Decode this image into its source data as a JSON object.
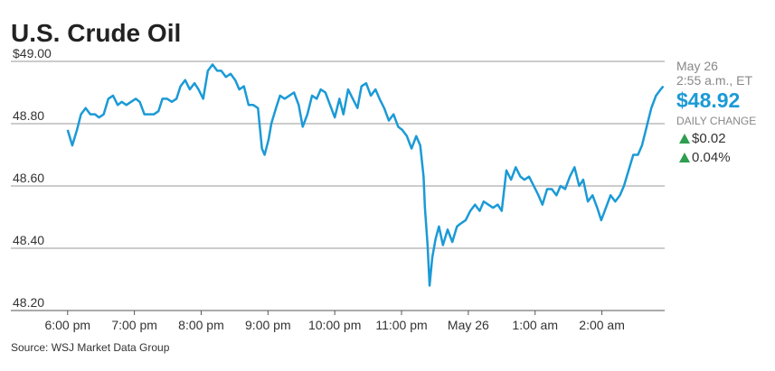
{
  "chart_data": {
    "type": "line",
    "title": "U.S. Crude Oil",
    "source": "Source: WSJ Market Data Group",
    "date": "May 26",
    "time": "2:55 a.m., ET",
    "price": "$48.92",
    "change_label": "DAILY CHANGE",
    "change": "$0.02",
    "change_pct": "0.04%",
    "color": "#1b9ad6",
    "up_color": "#2e9e4f",
    "grid": true,
    "xlim": [
      -0.85,
      8.94
    ],
    "ylim": [
      48.2,
      49.0
    ],
    "yticks": [
      {
        "value": 49.0,
        "label": "$49.00"
      },
      {
        "value": 48.8,
        "label": "48.80"
      },
      {
        "value": 48.6,
        "label": "48.60"
      },
      {
        "value": 48.4,
        "label": "48.40"
      },
      {
        "value": 48.2,
        "label": "48.20"
      }
    ],
    "xticks": [
      {
        "value": 0,
        "label": "6:00 pm"
      },
      {
        "value": 1,
        "label": "7:00 pm"
      },
      {
        "value": 2,
        "label": "8:00 pm"
      },
      {
        "value": 3,
        "label": "9:00 pm"
      },
      {
        "value": 4,
        "label": "10:00 pm"
      },
      {
        "value": 5,
        "label": "11:00 pm"
      },
      {
        "value": 6,
        "label": "May 26"
      },
      {
        "value": 7,
        "label": "1:00 am"
      },
      {
        "value": 8,
        "label": "2:00 am"
      }
    ],
    "x": [
      0,
      0.07,
      0.14,
      0.2,
      0.27,
      0.34,
      0.41,
      0.47,
      0.54,
      0.61,
      0.68,
      0.75,
      0.81,
      0.88,
      0.95,
      1.02,
      1.08,
      1.15,
      1.22,
      1.29,
      1.36,
      1.42,
      1.49,
      1.56,
      1.63,
      1.69,
      1.76,
      1.83,
      1.9,
      1.96,
      2.03,
      2.1,
      2.17,
      2.24,
      2.3,
      2.37,
      2.44,
      2.51,
      2.57,
      2.64,
      2.71,
      2.78,
      2.85,
      2.91,
      2.95,
      3.01,
      3.05,
      3.12,
      3.18,
      3.25,
      3.32,
      3.39,
      3.46,
      3.52,
      3.59,
      3.66,
      3.73,
      3.79,
      3.86,
      3.93,
      4.0,
      4.07,
      4.13,
      4.2,
      4.27,
      4.34,
      4.4,
      4.47,
      4.54,
      4.61,
      4.67,
      4.74,
      4.81,
      4.88,
      4.95,
      5.01,
      5.08,
      5.15,
      5.22,
      5.28,
      5.33,
      5.35,
      5.39,
      5.42,
      5.46,
      5.51,
      5.56,
      5.62,
      5.69,
      5.76,
      5.83,
      5.89,
      5.96,
      6.03,
      6.1,
      6.17,
      6.23,
      6.3,
      6.37,
      6.44,
      6.5,
      6.57,
      6.64,
      6.71,
      6.78,
      6.84,
      6.91,
      6.98,
      7.05,
      7.11,
      7.18,
      7.25,
      7.32,
      7.38,
      7.45,
      7.52,
      7.59,
      7.66,
      7.72,
      7.79,
      7.86,
      7.93,
      7.99,
      8.06,
      8.13,
      8.2,
      8.27,
      8.33,
      8.4,
      8.47,
      8.54,
      8.6,
      8.67,
      8.74,
      8.81,
      8.88,
      8.92
    ],
    "values": [
      48.78,
      48.73,
      48.78,
      48.83,
      48.85,
      48.83,
      48.83,
      48.82,
      48.83,
      48.88,
      48.89,
      48.86,
      48.87,
      48.86,
      48.87,
      48.88,
      48.87,
      48.83,
      48.83,
      48.83,
      48.84,
      48.88,
      48.88,
      48.87,
      48.88,
      48.92,
      48.94,
      48.91,
      48.93,
      48.91,
      48.88,
      48.97,
      48.99,
      48.97,
      48.97,
      48.95,
      48.96,
      48.94,
      48.91,
      48.92,
      48.86,
      48.86,
      48.85,
      48.72,
      48.7,
      48.75,
      48.8,
      48.85,
      48.89,
      48.88,
      48.89,
      48.9,
      48.86,
      48.79,
      48.83,
      48.89,
      48.88,
      48.91,
      48.9,
      48.86,
      48.82,
      48.88,
      48.83,
      48.91,
      48.88,
      48.85,
      48.92,
      48.93,
      48.89,
      48.91,
      48.88,
      48.85,
      48.81,
      48.83,
      48.79,
      48.78,
      48.76,
      48.72,
      48.76,
      48.73,
      48.63,
      48.53,
      48.41,
      48.28,
      48.37,
      48.43,
      48.47,
      48.41,
      48.46,
      48.42,
      48.47,
      48.48,
      48.49,
      48.52,
      48.54,
      48.52,
      48.55,
      48.54,
      48.53,
      48.54,
      48.52,
      48.65,
      48.62,
      48.66,
      48.63,
      48.62,
      48.63,
      48.6,
      48.57,
      48.54,
      48.59,
      48.59,
      48.57,
      48.6,
      48.59,
      48.63,
      48.66,
      48.6,
      48.62,
      48.55,
      48.57,
      48.53,
      48.49,
      48.53,
      48.57,
      48.55,
      48.57,
      48.6,
      48.65,
      48.7,
      48.7,
      48.73,
      48.79,
      48.85,
      48.89,
      48.91,
      48.92
    ]
  }
}
